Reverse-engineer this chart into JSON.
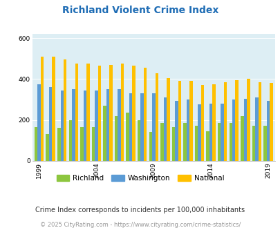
{
  "title": "Richland Violent Crime Index",
  "years": [
    1999,
    2000,
    2001,
    2002,
    2003,
    2004,
    2005,
    2006,
    2007,
    2008,
    2009,
    2010,
    2011,
    2012,
    2013,
    2014,
    2015,
    2016,
    2017,
    2018,
    2019
  ],
  "richland": [
    165,
    130,
    160,
    200,
    165,
    165,
    270,
    220,
    235,
    200,
    140,
    185,
    165,
    185,
    170,
    145,
    185,
    185,
    220,
    170,
    170
  ],
  "washington": [
    375,
    360,
    345,
    350,
    345,
    345,
    350,
    350,
    330,
    330,
    330,
    310,
    295,
    300,
    275,
    280,
    280,
    300,
    305,
    310,
    295
  ],
  "national": [
    510,
    510,
    495,
    475,
    475,
    465,
    470,
    475,
    465,
    455,
    430,
    405,
    390,
    390,
    370,
    375,
    385,
    395,
    400,
    385,
    380
  ],
  "xlabel_ticks": [
    1999,
    2004,
    2009,
    2014,
    2019
  ],
  "ylim": [
    0,
    620
  ],
  "yticks": [
    0,
    200,
    400,
    600
  ],
  "bar_width": 0.27,
  "colors": {
    "richland": "#8dc63f",
    "washington": "#5b9bd5",
    "national": "#ffc000"
  },
  "bg_color": "#ddeef4",
  "fig_bg": "#ffffff",
  "title_color": "#1f6db5",
  "footnote1": "Crime Index corresponds to incidents per 100,000 inhabitants",
  "footnote2": "© 2025 CityRating.com - https://www.cityrating.com/crime-statistics/",
  "footnote1_color": "#333333",
  "footnote2_color": "#999999"
}
